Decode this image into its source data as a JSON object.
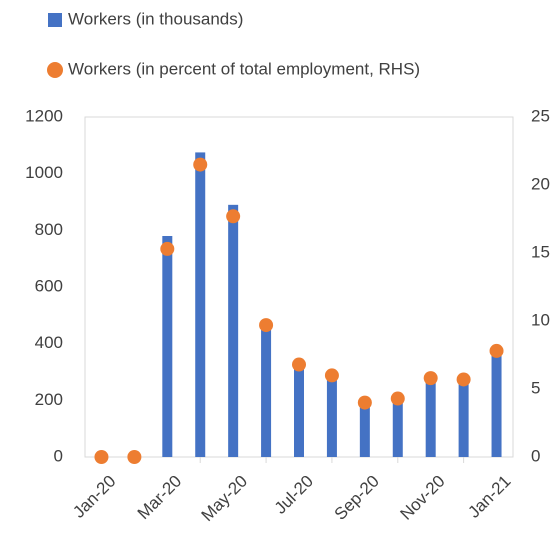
{
  "chart_data": {
    "type": "bar",
    "categories": [
      "Jan-20",
      null,
      "Mar-20",
      null,
      "May-20",
      null,
      "Jul-20",
      null,
      "Sep-20",
      null,
      "Nov-20",
      null,
      "Jan-21"
    ],
    "series": [
      {
        "name": "Workers (in thousands)",
        "type": "bar",
        "color": "#4472c4",
        "values": [
          0,
          0,
          780,
          1075,
          890,
          470,
          330,
          290,
          200,
          210,
          280,
          275,
          380
        ]
      },
      {
        "name": "Workers (in percent of total employment, RHS)",
        "type": "scatter",
        "axis": "y2",
        "color": "#ed7d31",
        "values": [
          0,
          0,
          15.3,
          21.5,
          17.7,
          9.7,
          6.8,
          6.0,
          4.0,
          4.3,
          5.8,
          5.7,
          7.8
        ]
      }
    ],
    "ylim": [
      0,
      1200
    ],
    "yticks": [
      0,
      200,
      400,
      600,
      800,
      1000,
      1200
    ],
    "y2lim": [
      0,
      25
    ],
    "y2ticks": [
      0,
      5,
      10,
      15,
      20,
      25
    ],
    "grid": false
  }
}
